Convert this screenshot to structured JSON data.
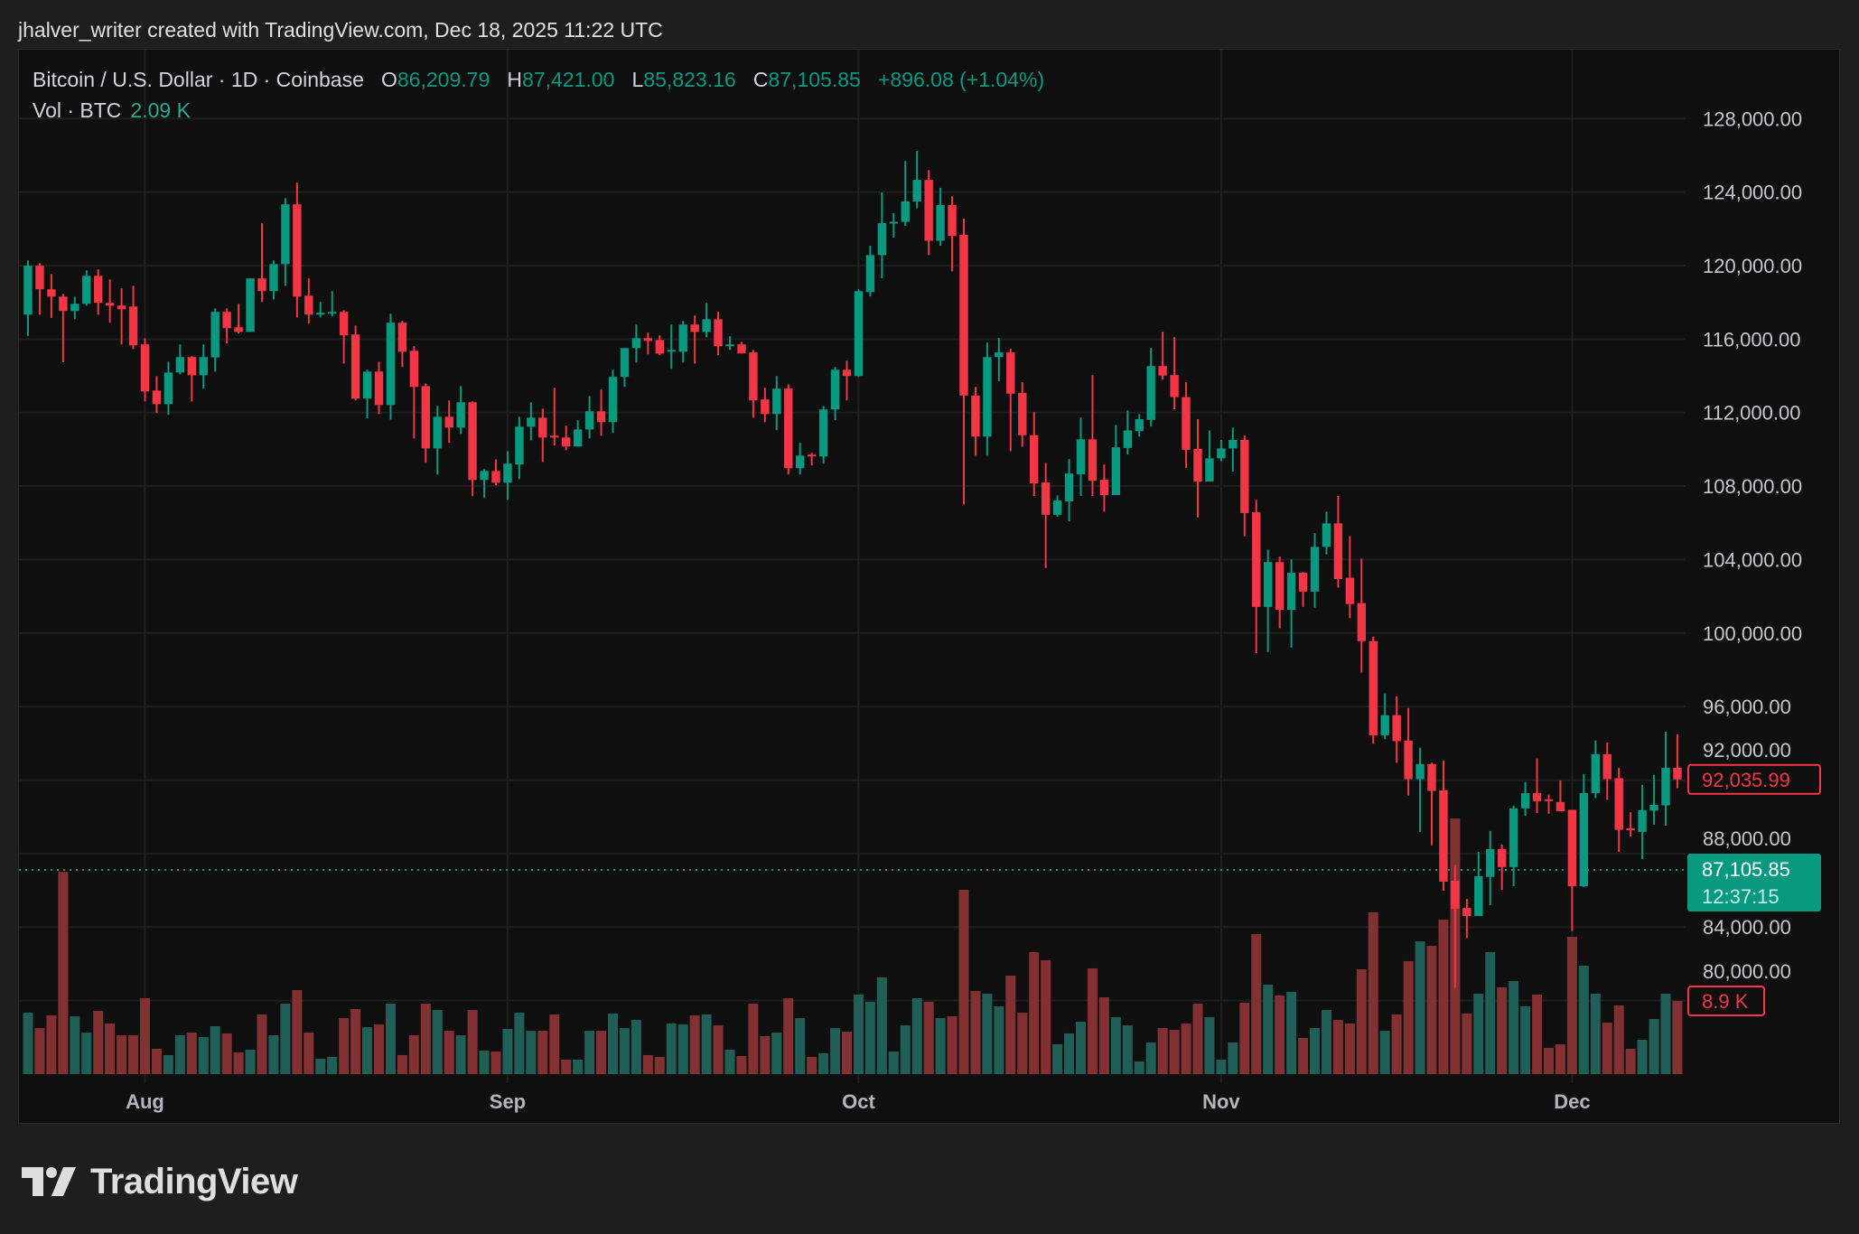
{
  "attribution": "jhalver_writer created with TradingView.com, Dec 18, 2025 11:22 UTC",
  "legend": {
    "symbol": "Bitcoin / U.S. Dollar · 1D · Coinbase",
    "o_label": "O",
    "o_value": "86,209.79",
    "h_label": "H",
    "h_value": "87,421.00",
    "l_label": "L",
    "l_value": "85,823.16",
    "c_label": "C",
    "c_value": "87,105.85",
    "change": "+896.08 (+1.04%)",
    "vol_label": "Vol · BTC",
    "vol_value": "2.09 K"
  },
  "logo": {
    "text": "TradingView",
    "icon": "tradingview-logo-icon"
  },
  "colors": {
    "up": "#089981",
    "down": "#f23645",
    "vol_up": "#1f5f58",
    "vol_down": "#823032",
    "grid": "#1f1f1f",
    "background": "#0f0f0f"
  },
  "chart_data": {
    "type": "candlestick",
    "title": "Bitcoin / U.S. Dollar · 1D · Coinbase",
    "x_range": [
      "2025-07-22",
      "2025-12-10"
    ],
    "ylim": [
      78000,
      130000
    ],
    "grid": true,
    "y_ticks": [
      {
        "value": 128000,
        "label": "128,000.00"
      },
      {
        "value": 124000,
        "label": "124,000.00"
      },
      {
        "value": 120000,
        "label": "120,000.00"
      },
      {
        "value": 116000,
        "label": "116,000.00"
      },
      {
        "value": 112000,
        "label": "112,000.00"
      },
      {
        "value": 108000,
        "label": "108,000.00"
      },
      {
        "value": 104000,
        "label": "104,000.00"
      },
      {
        "value": 100000,
        "label": "100,000.00"
      },
      {
        "value": 96000,
        "label": "96,000.00"
      },
      {
        "value": 92000,
        "label": "92,000.00"
      },
      {
        "value": 88000,
        "label": "88,000.00"
      },
      {
        "value": 84000,
        "label": "84,000.00"
      },
      {
        "value": 80000,
        "label": "80,000.00"
      }
    ],
    "x_ticks": [
      {
        "date": "2025-08-01",
        "label": "Aug"
      },
      {
        "date": "2025-09-01",
        "label": "Sep"
      },
      {
        "date": "2025-10-01",
        "label": "Oct"
      },
      {
        "date": "2025-11-01",
        "label": "Nov"
      },
      {
        "date": "2025-12-01",
        "label": "Dec"
      }
    ],
    "price_line": {
      "value": 87105.85,
      "label": "87,105.85",
      "countdown": "12:37:15"
    },
    "last_price_marker": {
      "value": 92035.99,
      "label": "92,035.99"
    },
    "volume_marker": {
      "value": 8.9,
      "label": "8.9 K"
    },
    "volume_unit": "K BTC",
    "candle_fields": [
      "open",
      "high",
      "low",
      "close",
      "volume"
    ],
    "candles": [
      [
        117330,
        120280,
        116170,
        119990,
        7.47
      ],
      [
        119990,
        120130,
        117330,
        118710,
        5.6
      ],
      [
        118710,
        119540,
        117150,
        118310,
        7.14
      ],
      [
        118310,
        118460,
        114740,
        117530,
        24.6
      ],
      [
        117530,
        118310,
        117080,
        117920,
        7.03
      ],
      [
        117920,
        119740,
        117820,
        119440,
        5.05
      ],
      [
        119440,
        119790,
        117330,
        117970,
        7.69
      ],
      [
        117970,
        119250,
        116890,
        117820,
        6.15
      ],
      [
        117820,
        118760,
        115710,
        117620,
        4.73
      ],
      [
        117770,
        118900,
        115460,
        115660,
        4.73
      ],
      [
        115710,
        116050,
        112610,
        113150,
        9.23
      ],
      [
        113200,
        113990,
        111970,
        112460,
        3.08
      ],
      [
        112460,
        114770,
        111870,
        114180,
        2.31
      ],
      [
        114180,
        115710,
        114080,
        115020,
        4.73
      ],
      [
        115020,
        115070,
        112610,
        114030,
        5.05
      ],
      [
        114030,
        115710,
        113300,
        115020,
        4.51
      ],
      [
        115000,
        117670,
        114230,
        117480,
        5.82
      ],
      [
        117480,
        117670,
        115760,
        116590,
        4.95
      ],
      [
        116640,
        117920,
        116300,
        116390,
        2.64
      ],
      [
        116390,
        119300,
        116390,
        119300,
        2.97
      ],
      [
        119300,
        122300,
        118020,
        118610,
        7.25
      ],
      [
        118610,
        120280,
        118160,
        120080,
        4.73
      ],
      [
        120080,
        123670,
        118900,
        123330,
        8.57
      ],
      [
        123330,
        124510,
        117180,
        118310,
        10.22
      ],
      [
        118360,
        119300,
        116840,
        117330,
        5.05
      ],
      [
        117330,
        118020,
        117180,
        117430,
        1.87
      ],
      [
        117430,
        118610,
        117230,
        117480,
        2.09
      ],
      [
        117480,
        117570,
        114670,
        116200,
        6.81
      ],
      [
        116250,
        116740,
        112660,
        112760,
        7.91
      ],
      [
        112760,
        114330,
        111690,
        114230,
        5.71
      ],
      [
        114230,
        114770,
        111920,
        112410,
        6.04
      ],
      [
        112410,
        117380,
        111620,
        116890,
        8.57
      ],
      [
        116890,
        116990,
        114480,
        115310,
        2.31
      ],
      [
        115360,
        115610,
        110590,
        113400,
        4.73
      ],
      [
        113440,
        113590,
        109270,
        110050,
        8.57
      ],
      [
        110050,
        112360,
        108630,
        111770,
        7.8
      ],
      [
        111770,
        112660,
        110350,
        111180,
        5.27
      ],
      [
        111180,
        113440,
        110840,
        112560,
        4.73
      ],
      [
        112560,
        112610,
        107450,
        108330,
        7.8
      ],
      [
        108330,
        108920,
        107350,
        108820,
        2.86
      ],
      [
        108820,
        109460,
        108040,
        108180,
        2.75
      ],
      [
        108180,
        109900,
        107250,
        109220,
        5.49
      ],
      [
        109170,
        111770,
        108380,
        111230,
        7.47
      ],
      [
        111230,
        112560,
        110490,
        111720,
        5.27
      ],
      [
        111720,
        112210,
        109310,
        110640,
        5.27
      ],
      [
        110740,
        113350,
        110200,
        110640,
        7.25
      ],
      [
        110640,
        111280,
        109950,
        110150,
        1.76
      ],
      [
        110150,
        111580,
        110150,
        111080,
        1.76
      ],
      [
        111080,
        112900,
        110590,
        112070,
        5.27
      ],
      [
        112070,
        113250,
        110740,
        111480,
        5.27
      ],
      [
        111480,
        114330,
        110890,
        113940,
        7.36
      ],
      [
        113940,
        115510,
        113400,
        115510,
        5.6
      ],
      [
        115510,
        116790,
        114720,
        116050,
        6.59
      ],
      [
        116050,
        116350,
        115170,
        115900,
        2.31
      ],
      [
        115950,
        116200,
        115120,
        115210,
        2.09
      ],
      [
        115360,
        116790,
        114380,
        115410,
        6.15
      ],
      [
        115310,
        116990,
        114720,
        116790,
        6.04
      ],
      [
        116790,
        117280,
        114670,
        116390,
        7.14
      ],
      [
        116390,
        117970,
        116100,
        117080,
        7.25
      ],
      [
        117080,
        117480,
        115120,
        115610,
        5.93
      ],
      [
        115660,
        116150,
        115410,
        115710,
        2.97
      ],
      [
        115710,
        115850,
        115220,
        115220,
        2.2
      ],
      [
        115270,
        115410,
        111720,
        112660,
        8.57
      ],
      [
        112710,
        113350,
        111480,
        111920,
        4.62
      ],
      [
        111920,
        113990,
        111040,
        113300,
        5.05
      ],
      [
        113300,
        113540,
        108630,
        108970,
        9.23
      ],
      [
        108970,
        110350,
        108630,
        109660,
        6.81
      ],
      [
        109710,
        109810,
        109120,
        109610,
        2.09
      ],
      [
        109610,
        112360,
        109220,
        112170,
        2.53
      ],
      [
        112170,
        114480,
        111580,
        114330,
        5.6
      ],
      [
        114330,
        114820,
        112660,
        113990,
        5.16
      ],
      [
        113990,
        118710,
        113940,
        118610,
        9.67
      ],
      [
        118560,
        121080,
        118320,
        120570,
        8.79
      ],
      [
        120570,
        123980,
        119310,
        122310,
        11.76
      ],
      [
        122310,
        122850,
        121520,
        122380,
        2.75
      ],
      [
        122380,
        125690,
        122160,
        123490,
        5.93
      ],
      [
        123490,
        126240,
        123120,
        124660,
        9.23
      ],
      [
        124660,
        125200,
        120570,
        121350,
        8.79
      ],
      [
        121350,
        124230,
        121080,
        123290,
        6.81
      ],
      [
        123290,
        123770,
        119690,
        121610,
        7.03
      ],
      [
        121670,
        122550,
        107000,
        112930,
        22.42
      ],
      [
        112930,
        113400,
        109660,
        110690,
        10.11
      ],
      [
        110690,
        115810,
        109660,
        115020,
        9.78
      ],
      [
        115020,
        116060,
        113710,
        115270,
        8.24
      ],
      [
        115270,
        115480,
        109900,
        113030,
        11.98
      ],
      [
        113070,
        113650,
        110150,
        110770,
        7.47
      ],
      [
        110770,
        112030,
        107460,
        108150,
        14.84
      ],
      [
        108190,
        109260,
        103540,
        106440,
        13.85
      ],
      [
        106440,
        107490,
        106330,
        107210,
        3.63
      ],
      [
        107170,
        109470,
        106080,
        108680,
        4.95
      ],
      [
        108640,
        111730,
        107460,
        110540,
        6.37
      ],
      [
        110540,
        114040,
        107460,
        108300,
        12.86
      ],
      [
        108340,
        109170,
        106610,
        107510,
        9.34
      ],
      [
        107510,
        111330,
        107510,
        110110,
        6.92
      ],
      [
        110070,
        112120,
        109720,
        111030,
        5.93
      ],
      [
        110990,
        111920,
        110690,
        111640,
        1.54
      ],
      [
        111600,
        115510,
        111240,
        114530,
        3.85
      ],
      [
        114530,
        116400,
        113800,
        114010,
        5.6
      ],
      [
        114040,
        116110,
        112180,
        112840,
        5.38
      ],
      [
        112840,
        113650,
        108980,
        109980,
        6.15
      ],
      [
        110020,
        111640,
        106290,
        108250,
        8.57
      ],
      [
        108250,
        111030,
        108250,
        109510,
        6.92
      ],
      [
        109510,
        110510,
        109340,
        110050,
        1.76
      ],
      [
        110050,
        111180,
        108790,
        110510,
        3.85
      ],
      [
        110510,
        110750,
        105260,
        106530,
        8.68
      ],
      [
        106570,
        107250,
        98910,
        101420,
        17.03
      ],
      [
        101420,
        104540,
        98970,
        103860,
        10.88
      ],
      [
        103860,
        104160,
        100250,
        101270,
        9.56
      ],
      [
        101270,
        104010,
        99210,
        103280,
        10.0
      ],
      [
        103280,
        103320,
        101420,
        102260,
        4.4
      ],
      [
        102260,
        105440,
        101380,
        104690,
        5.6
      ],
      [
        104690,
        106610,
        104280,
        105970,
        7.8
      ],
      [
        105970,
        107460,
        102470,
        102940,
        6.59
      ],
      [
        103010,
        105280,
        100810,
        101580,
        6.15
      ],
      [
        101630,
        104050,
        97860,
        99560,
        12.75
      ],
      [
        99560,
        99810,
        93970,
        94440,
        19.67
      ],
      [
        94440,
        96710,
        94220,
        95530,
        5.27
      ],
      [
        95530,
        96560,
        92940,
        94120,
        7.25
      ],
      [
        94150,
        95920,
        91150,
        92050,
        13.74
      ],
      [
        92050,
        93760,
        89180,
        92870,
        16.15
      ],
      [
        92870,
        92940,
        88440,
        91410,
        15.6
      ],
      [
        91440,
        93070,
        85980,
        86470,
        18.79
      ],
      [
        86520,
        87370,
        80700,
        84990,
        31.1
      ],
      [
        85040,
        85530,
        83400,
        84600,
        7.36
      ],
      [
        84600,
        88100,
        84600,
        86770,
        9.78
      ],
      [
        86730,
        89230,
        85190,
        88240,
        14.84
      ],
      [
        88240,
        88490,
        86030,
        87260,
        10.55
      ],
      [
        87260,
        90610,
        86220,
        90460,
        11.32
      ],
      [
        90460,
        91890,
        90060,
        91280,
        8.24
      ],
      [
        91280,
        93170,
        90210,
        90850,
        9.67
      ],
      [
        90950,
        91200,
        90160,
        90880,
        3.19
      ],
      [
        90800,
        91980,
        90310,
        90310,
        3.63
      ],
      [
        90380,
        90380,
        83780,
        86220,
        16.7
      ],
      [
        86220,
        92330,
        86170,
        91290,
        13.19
      ],
      [
        91290,
        94150,
        91020,
        93410,
        9.78
      ],
      [
        93410,
        94050,
        90920,
        92050,
        6.26
      ],
      [
        92100,
        92670,
        88090,
        89290,
        8.35
      ],
      [
        89370,
        90260,
        88930,
        89310,
        3.08
      ],
      [
        89180,
        91740,
        87700,
        90360,
        4.18
      ],
      [
        90330,
        92280,
        89570,
        90650,
        6.7
      ],
      [
        90620,
        94640,
        89520,
        92670,
        9.78
      ],
      [
        92670,
        94490,
        91560,
        92040,
        8.9
      ]
    ]
  }
}
